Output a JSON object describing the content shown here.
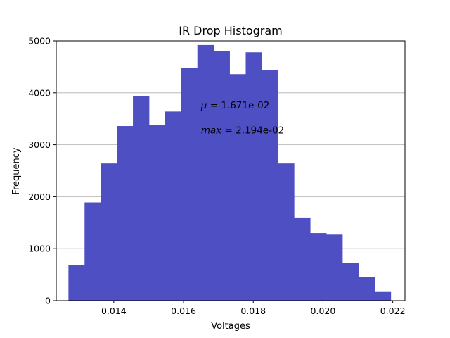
{
  "chart_data": {
    "type": "bar",
    "title": "IR Drop Histogram",
    "xlabel": "Voltages",
    "ylabel": "Frequency",
    "xlim": [
      0.01235,
      0.02235
    ],
    "ylim": [
      0,
      5000
    ],
    "xticks": [
      0.014,
      0.016,
      0.018,
      0.02,
      0.022
    ],
    "xtick_labels": [
      "0.014",
      "0.016",
      "0.018",
      "0.020",
      "0.022"
    ],
    "yticks": [
      0,
      1000,
      2000,
      3000,
      4000,
      5000
    ],
    "ytick_labels": [
      "0",
      "1000",
      "2000",
      "3000",
      "4000",
      "5000"
    ],
    "grid": "y",
    "bar_color": "#4f4fc4",
    "bin_start": 0.0127,
    "bin_width": 0.0004621,
    "values": [
      690,
      1890,
      2640,
      3360,
      3930,
      3380,
      3640,
      4480,
      4920,
      4810,
      4360,
      4780,
      4440,
      2640,
      1600,
      1300,
      1270,
      720,
      450,
      180
    ],
    "annotations": [
      {
        "symbol": "μ",
        "text": " = 1.671e-02",
        "x": 0.0165,
        "y": 3700
      },
      {
        "symbol": "max",
        "text": " = 2.194e-02",
        "x": 0.0165,
        "y": 3220
      }
    ]
  }
}
